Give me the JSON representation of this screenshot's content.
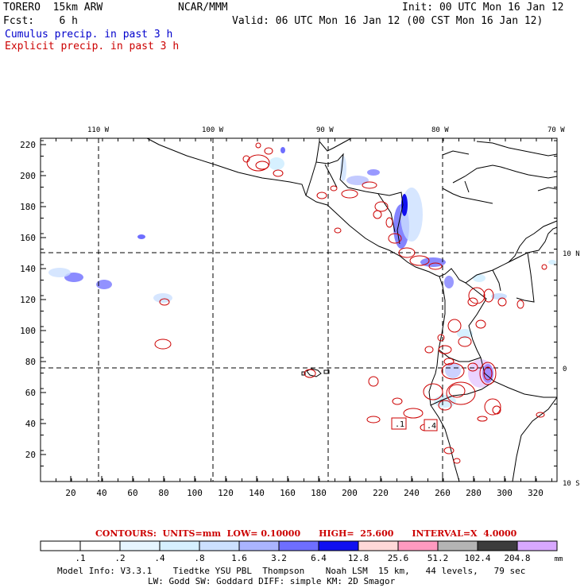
{
  "header": {
    "model": "TORERO  15km ARW",
    "org": "NCAR/MMM",
    "init": "Init: 00 UTC Mon 16 Jan 12",
    "fcst": "Fcst:    6 h",
    "valid": "Valid: 06 UTC Mon 16 Jan 12 (00 CST Mon 16 Jan 12)",
    "field1": "Cumulus precip. in past 3 h",
    "field2": "Explicit precip. in past 3 h"
  },
  "map": {
    "lon_labels": [
      "110 W",
      "100 W",
      "90 W",
      "80 W",
      "70 W"
    ],
    "lat_labels": [
      "10 N",
      "0",
      "10 S"
    ],
    "y_ticks": [
      "220",
      "200",
      "180",
      "160",
      "140",
      "120",
      "100",
      "80",
      "60",
      "40",
      "20"
    ],
    "x_ticks": [
      "20",
      "40",
      "60",
      "80",
      "100",
      "120",
      "140",
      "160",
      "180",
      "200",
      "220",
      "240",
      "260",
      "280",
      "300",
      "320"
    ],
    "box_labels": [
      ".1",
      ".4"
    ],
    "colors": {
      "land": "#000000",
      "explicit": "#cc0000",
      "cumulus": "#4d4dff"
    }
  },
  "contours_line": {
    "label": "CONTOURS:  UNITS=mm  LOW= 0.10000      HIGH=  25.600      INTERVAL=X  4.0000"
  },
  "colorbar": {
    "labels": [
      ".1",
      ".2",
      ".4",
      ".8",
      "1.6",
      "3.2",
      "6.4",
      "12.8",
      "25.6",
      "51.2",
      "102.4",
      "204.8"
    ],
    "unit": "mm",
    "colors": [
      "#ffffff",
      "#ffffff",
      "#e6f5ff",
      "#d6f0ff",
      "#cce0ff",
      "#aab4ff",
      "#6e6eff",
      "#1010f0",
      "#ffd8d8",
      "#ff9ac0",
      "#b4b4b4",
      "#3c3c3c",
      "#d8a8ff"
    ]
  },
  "info": {
    "line1": "Model Info: V3.3.1    Tiedtke YSU PBL  Thompson    Noah LSM  15 km,   44 levels,   79 sec",
    "line2": "LW: Godd SW: Goddard DIFF: simple KM: 2D Smagor"
  }
}
